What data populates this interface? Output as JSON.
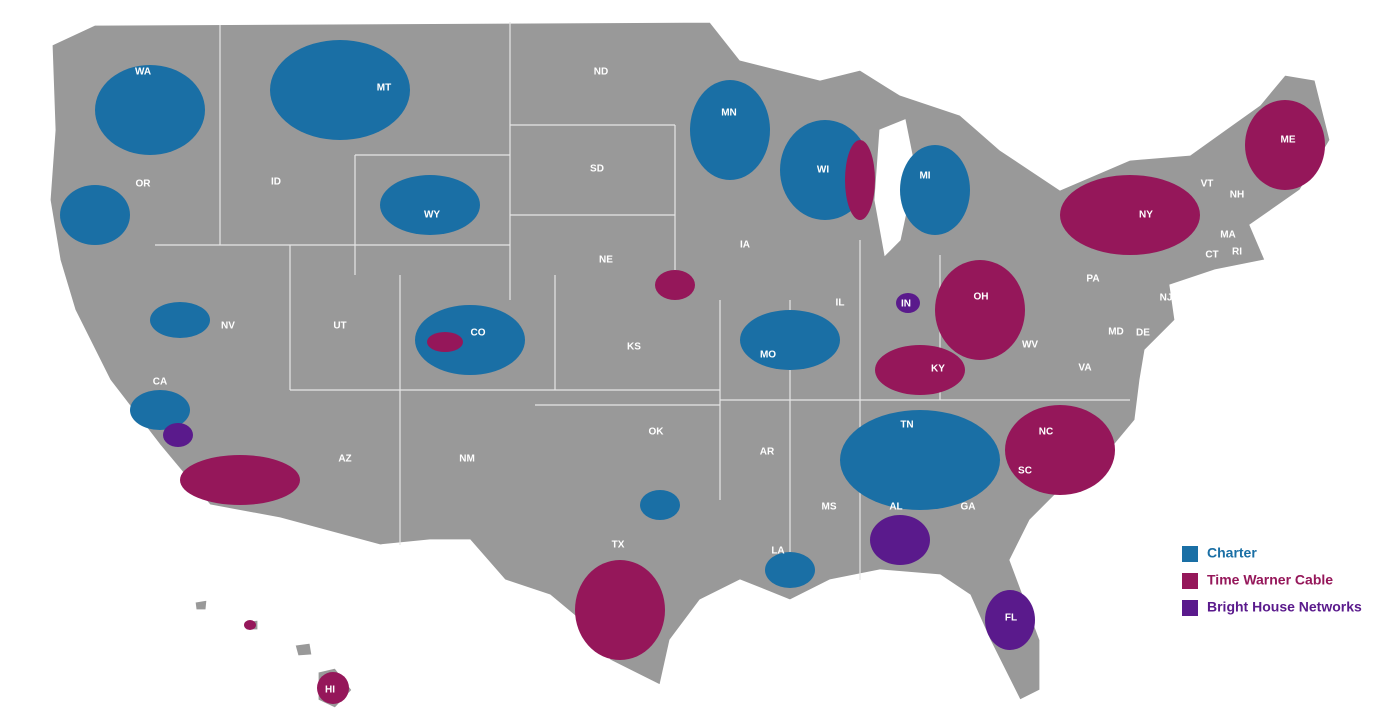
{
  "legend": [
    {
      "name": "Charter",
      "color": "#1a6fa5"
    },
    {
      "name": "Time Warner Cable",
      "color": "#95175a"
    },
    {
      "name": "Bright House Networks",
      "color": "#5a1a8c"
    }
  ],
  "states": [
    "WA",
    "OR",
    "CA",
    "NV",
    "ID",
    "MT",
    "WY",
    "UT",
    "AZ",
    "CO",
    "NM",
    "ND",
    "SD",
    "NE",
    "KS",
    "OK",
    "TX",
    "MN",
    "IA",
    "MO",
    "AR",
    "LA",
    "MS",
    "IL",
    "WI",
    "MI",
    "IN",
    "OH",
    "KY",
    "TN",
    "AL",
    "GA",
    "FL",
    "SC",
    "NC",
    "VA",
    "WV",
    "PA",
    "NY",
    "VT",
    "NH",
    "ME",
    "MA",
    "CT",
    "RI",
    "NJ",
    "MD",
    "DE",
    "HI"
  ]
}
